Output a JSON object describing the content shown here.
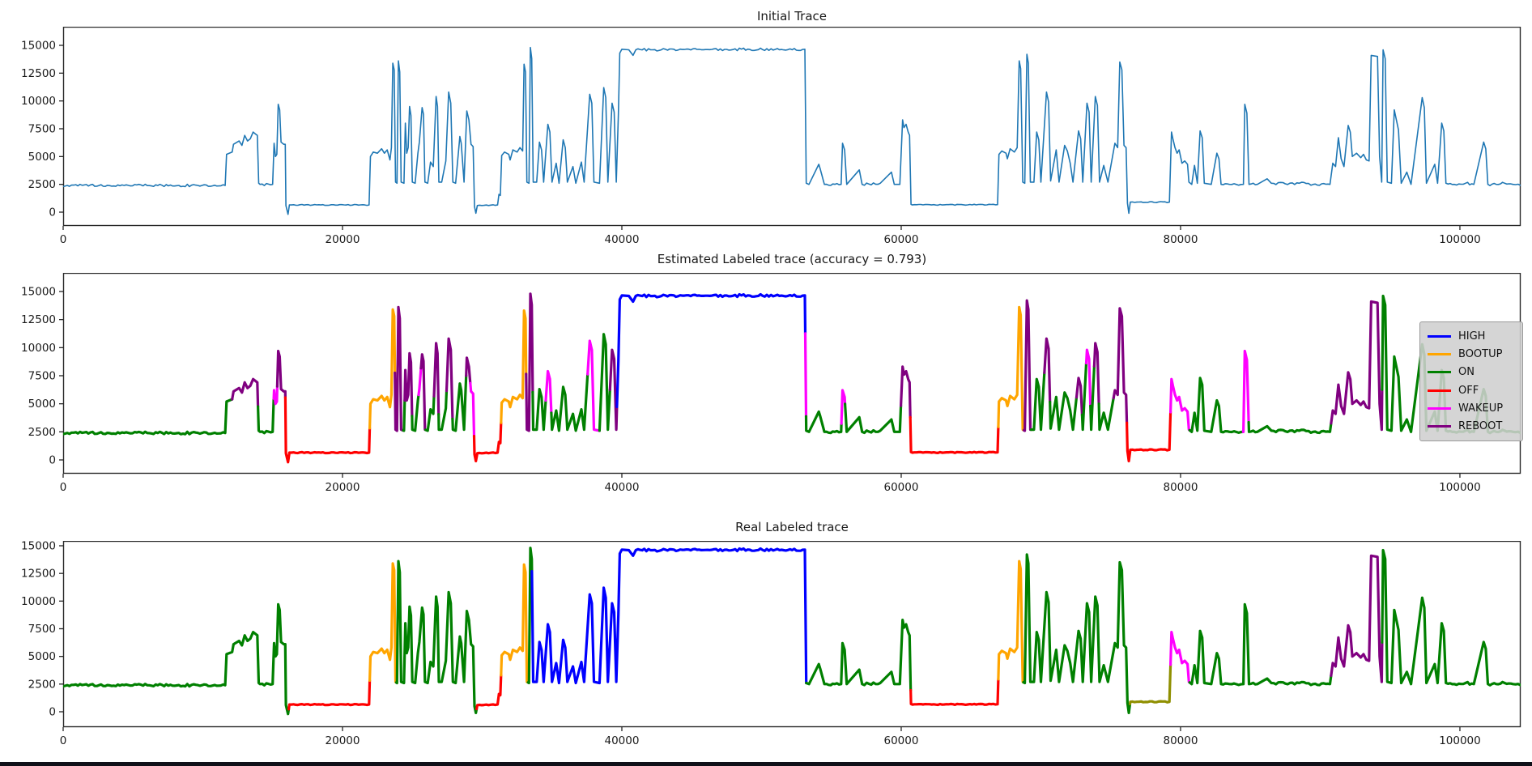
{
  "subplots": {
    "initial": {
      "title": "Initial Trace"
    },
    "estimated": {
      "title": "Estimated Labeled trace (accuracy = 0.793)"
    },
    "real": {
      "title": "Real Labeled trace"
    }
  },
  "chart_data": {
    "type": "line",
    "xlim": [
      0,
      104350
    ],
    "ylim": [
      -1250,
      16700
    ],
    "x_ticks": [
      0,
      20000,
      40000,
      60000,
      80000,
      100000
    ],
    "y_ticks": [
      0,
      2500,
      5000,
      7500,
      10000,
      12500,
      15000
    ],
    "grid": false,
    "legend_position": "center-right",
    "colors": {
      "TRACE": "#1f77b4",
      "HIGH": "#0000ff",
      "BOOTUP": "#ffa500",
      "ON": "#008000",
      "OFF": "#ff0000",
      "WAKEUP": "#ff00ff",
      "REBOOT": "#800080",
      "OLIVE": "#8f8f00"
    },
    "legend_entries": [
      {
        "label": "HIGH",
        "color": "HIGH"
      },
      {
        "label": "BOOTUP",
        "color": "BOOTUP"
      },
      {
        "label": "ON",
        "color": "ON"
      },
      {
        "label": "OFF",
        "color": "OFF"
      },
      {
        "label": "WAKEUP",
        "color": "WAKEUP"
      },
      {
        "label": "REBOOT",
        "color": "REBOOT"
      }
    ],
    "trace_points": [
      [
        0,
        2300
      ],
      [
        300,
        2400
      ],
      [
        11600,
        2400
      ],
      [
        11700,
        5200
      ],
      [
        12100,
        5400
      ],
      [
        12200,
        6100
      ],
      [
        12600,
        6400
      ],
      [
        12800,
        6000
      ],
      [
        13000,
        6900
      ],
      [
        13200,
        6400
      ],
      [
        13400,
        6600
      ],
      [
        13600,
        7200
      ],
      [
        13800,
        7000
      ],
      [
        13900,
        6900
      ],
      [
        14000,
        2600
      ],
      [
        14100,
        2500
      ],
      [
        15000,
        2500
      ],
      [
        15100,
        6200
      ],
      [
        15200,
        5000
      ],
      [
        15300,
        5200
      ],
      [
        15400,
        9700
      ],
      [
        15500,
        9200
      ],
      [
        15600,
        6300
      ],
      [
        15800,
        6100
      ],
      [
        15900,
        6100
      ],
      [
        15950,
        600
      ],
      [
        16100,
        -200
      ],
      [
        16200,
        650
      ],
      [
        21900,
        650
      ],
      [
        22000,
        5000
      ],
      [
        22200,
        5400
      ],
      [
        22500,
        5300
      ],
      [
        22800,
        5700
      ],
      [
        23000,
        5300
      ],
      [
        23200,
        5600
      ],
      [
        23400,
        4700
      ],
      [
        23500,
        5800
      ],
      [
        23600,
        13400
      ],
      [
        23700,
        12800
      ],
      [
        23800,
        2700
      ],
      [
        23900,
        2600
      ],
      [
        24000,
        13600
      ],
      [
        24100,
        12600
      ],
      [
        24200,
        2700
      ],
      [
        24400,
        2600
      ],
      [
        24500,
        8000
      ],
      [
        24600,
        5300
      ],
      [
        24700,
        5800
      ],
      [
        24800,
        9500
      ],
      [
        24900,
        8700
      ],
      [
        25000,
        2700
      ],
      [
        25200,
        2600
      ],
      [
        25400,
        5300
      ],
      [
        25500,
        6300
      ],
      [
        25700,
        9400
      ],
      [
        25800,
        8800
      ],
      [
        25900,
        2700
      ],
      [
        26100,
        2600
      ],
      [
        26300,
        4500
      ],
      [
        26500,
        4100
      ],
      [
        26700,
        10400
      ],
      [
        26800,
        9500
      ],
      [
        26900,
        2700
      ],
      [
        27100,
        2700
      ],
      [
        27400,
        4600
      ],
      [
        27600,
        10800
      ],
      [
        27750,
        9800
      ],
      [
        27900,
        2700
      ],
      [
        28100,
        2600
      ],
      [
        28400,
        6800
      ],
      [
        28500,
        6200
      ],
      [
        28700,
        2700
      ],
      [
        28900,
        9100
      ],
      [
        29050,
        8300
      ],
      [
        29200,
        6100
      ],
      [
        29350,
        5900
      ],
      [
        29450,
        500
      ],
      [
        29550,
        -100
      ],
      [
        29650,
        600
      ],
      [
        31100,
        650
      ],
      [
        31200,
        1600
      ],
      [
        31300,
        1500
      ],
      [
        31400,
        5100
      ],
      [
        31600,
        5400
      ],
      [
        31900,
        5200
      ],
      [
        32000,
        4700
      ],
      [
        32200,
        5600
      ],
      [
        32500,
        5400
      ],
      [
        32700,
        5800
      ],
      [
        32900,
        5500
      ],
      [
        33000,
        13300
      ],
      [
        33100,
        12600
      ],
      [
        33200,
        2700
      ],
      [
        33350,
        2600
      ],
      [
        33450,
        14800
      ],
      [
        33550,
        13800
      ],
      [
        33650,
        2700
      ],
      [
        33900,
        2700
      ],
      [
        34100,
        6300
      ],
      [
        34250,
        5600
      ],
      [
        34400,
        2700
      ],
      [
        34700,
        7900
      ],
      [
        34850,
        7200
      ],
      [
        35000,
        2700
      ],
      [
        35300,
        4400
      ],
      [
        35500,
        2600
      ],
      [
        35800,
        6500
      ],
      [
        35950,
        5800
      ],
      [
        36100,
        2700
      ],
      [
        36500,
        4100
      ],
      [
        36700,
        2600
      ],
      [
        37100,
        4500
      ],
      [
        37300,
        2700
      ],
      [
        37700,
        10600
      ],
      [
        37850,
        9800
      ],
      [
        38000,
        2700
      ],
      [
        38400,
        2600
      ],
      [
        38700,
        11200
      ],
      [
        38850,
        10300
      ],
      [
        39000,
        2700
      ],
      [
        39300,
        9800
      ],
      [
        39450,
        9000
      ],
      [
        39600,
        2700
      ],
      [
        39750,
        8800
      ],
      [
        39850,
        14300
      ],
      [
        40000,
        14650
      ],
      [
        40500,
        14600
      ],
      [
        40800,
        14100
      ],
      [
        41000,
        14600
      ],
      [
        53100,
        14650
      ],
      [
        53150,
        9000
      ],
      [
        53200,
        2600
      ],
      [
        53400,
        2500
      ],
      [
        54100,
        4300
      ],
      [
        54200,
        3900
      ],
      [
        54500,
        2500
      ],
      [
        55700,
        2500
      ],
      [
        55800,
        6200
      ],
      [
        55950,
        5600
      ],
      [
        56100,
        2500
      ],
      [
        57000,
        3800
      ],
      [
        57200,
        2500
      ],
      [
        58500,
        2600
      ],
      [
        59300,
        3600
      ],
      [
        59500,
        2500
      ],
      [
        59900,
        2500
      ],
      [
        60100,
        8300
      ],
      [
        60200,
        7600
      ],
      [
        60350,
        7900
      ],
      [
        60500,
        7200
      ],
      [
        60600,
        6900
      ],
      [
        60700,
        700
      ],
      [
        60800,
        650
      ],
      [
        66900,
        680
      ],
      [
        67000,
        5200
      ],
      [
        67200,
        5500
      ],
      [
        67500,
        5300
      ],
      [
        67600,
        4800
      ],
      [
        67800,
        5700
      ],
      [
        68100,
        5400
      ],
      [
        68300,
        5800
      ],
      [
        68450,
        13600
      ],
      [
        68550,
        12900
      ],
      [
        68700,
        2700
      ],
      [
        68850,
        2600
      ],
      [
        69000,
        14200
      ],
      [
        69100,
        13400
      ],
      [
        69250,
        2700
      ],
      [
        69500,
        2700
      ],
      [
        69700,
        7200
      ],
      [
        69850,
        6500
      ],
      [
        70000,
        2700
      ],
      [
        70400,
        10800
      ],
      [
        70550,
        9900
      ],
      [
        70700,
        2800
      ],
      [
        71100,
        5600
      ],
      [
        71300,
        2700
      ],
      [
        71700,
        6000
      ],
      [
        71900,
        5500
      ],
      [
        72100,
        4400
      ],
      [
        72300,
        2700
      ],
      [
        72700,
        7300
      ],
      [
        72850,
        6600
      ],
      [
        73000,
        2700
      ],
      [
        73300,
        9800
      ],
      [
        73450,
        9000
      ],
      [
        73600,
        2700
      ],
      [
        73900,
        10400
      ],
      [
        74050,
        9600
      ],
      [
        74200,
        2700
      ],
      [
        74500,
        4200
      ],
      [
        74800,
        2700
      ],
      [
        75300,
        6200
      ],
      [
        75500,
        5800
      ],
      [
        75650,
        13500
      ],
      [
        75800,
        12800
      ],
      [
        75950,
        6000
      ],
      [
        76100,
        5800
      ],
      [
        76200,
        800
      ],
      [
        76300,
        -100
      ],
      [
        76400,
        900
      ],
      [
        79200,
        900
      ],
      [
        79350,
        7200
      ],
      [
        79450,
        6600
      ],
      [
        79600,
        5800
      ],
      [
        79750,
        5300
      ],
      [
        79900,
        5600
      ],
      [
        80100,
        4400
      ],
      [
        80300,
        4600
      ],
      [
        80500,
        4300
      ],
      [
        80600,
        2700
      ],
      [
        80800,
        2500
      ],
      [
        81000,
        4200
      ],
      [
        81200,
        2600
      ],
      [
        81400,
        7300
      ],
      [
        81550,
        6700
      ],
      [
        81700,
        2600
      ],
      [
        82200,
        2500
      ],
      [
        82600,
        5300
      ],
      [
        82750,
        4800
      ],
      [
        82900,
        2500
      ],
      [
        83500,
        2500
      ],
      [
        84500,
        2500
      ],
      [
        84600,
        9700
      ],
      [
        84750,
        8900
      ],
      [
        84900,
        2500
      ],
      [
        85500,
        2500
      ],
      [
        86200,
        3000
      ],
      [
        86500,
        2600
      ],
      [
        87500,
        2550
      ],
      [
        88500,
        2600
      ],
      [
        89500,
        2500
      ],
      [
        90700,
        2500
      ],
      [
        90900,
        4400
      ],
      [
        91100,
        4100
      ],
      [
        91300,
        6700
      ],
      [
        91500,
        4800
      ],
      [
        91700,
        4100
      ],
      [
        92000,
        7800
      ],
      [
        92150,
        7200
      ],
      [
        92300,
        5000
      ],
      [
        92600,
        5300
      ],
      [
        92900,
        4900
      ],
      [
        93100,
        5200
      ],
      [
        93300,
        4700
      ],
      [
        93500,
        4600
      ],
      [
        93650,
        14100
      ],
      [
        94100,
        14000
      ],
      [
        94250,
        5000
      ],
      [
        94400,
        2700
      ],
      [
        94500,
        14600
      ],
      [
        94650,
        13800
      ],
      [
        94800,
        2700
      ],
      [
        95100,
        2600
      ],
      [
        95300,
        9200
      ],
      [
        95450,
        8300
      ],
      [
        95600,
        7400
      ],
      [
        95800,
        2600
      ],
      [
        96200,
        3600
      ],
      [
        96500,
        2500
      ],
      [
        97300,
        10300
      ],
      [
        97450,
        9400
      ],
      [
        97600,
        2600
      ],
      [
        98200,
        4300
      ],
      [
        98400,
        2600
      ],
      [
        98700,
        8000
      ],
      [
        98850,
        7300
      ],
      [
        99000,
        2600
      ],
      [
        99600,
        2500
      ],
      [
        100400,
        2600
      ],
      [
        101000,
        2500
      ],
      [
        101700,
        6300
      ],
      [
        101850,
        5700
      ],
      [
        102000,
        2500
      ],
      [
        102600,
        2500
      ],
      [
        103200,
        2600
      ],
      [
        103800,
        2500
      ],
      [
        104350,
        2400
      ]
    ],
    "estimated_segments": [
      [
        "ON",
        0,
        12100
      ],
      [
        "REBOOT",
        12100,
        13950
      ],
      [
        "ON",
        13950,
        15080
      ],
      [
        "WAKEUP",
        15080,
        15330
      ],
      [
        "REBOOT",
        15330,
        15905
      ],
      [
        "OFF",
        15905,
        21950
      ],
      [
        "BOOTUP",
        21950,
        23750
      ],
      [
        "REBOOT",
        23750,
        24350
      ],
      [
        "ON",
        24350,
        24450
      ],
      [
        "REBOOT",
        24450,
        24980
      ],
      [
        "ON",
        24980,
        25450
      ],
      [
        "WAKEUP",
        25450,
        25620
      ],
      [
        "REBOOT",
        25620,
        25950
      ],
      [
        "ON",
        25950,
        26550
      ],
      [
        "REBOOT",
        26550,
        26880
      ],
      [
        "ON",
        26880,
        27450
      ],
      [
        "REBOOT",
        27450,
        27880
      ],
      [
        "ON",
        27880,
        28850
      ],
      [
        "REBOOT",
        28850,
        29150
      ],
      [
        "WAKEUP",
        29150,
        29420
      ],
      [
        "OFF",
        29420,
        31350
      ],
      [
        "BOOTUP",
        31350,
        33150
      ],
      [
        "REBOOT",
        33150,
        33620
      ],
      [
        "ON",
        33620,
        34550
      ],
      [
        "WAKEUP",
        34550,
        34950
      ],
      [
        "ON",
        34950,
        37550
      ],
      [
        "WAKEUP",
        37550,
        38400
      ],
      [
        "ON",
        38400,
        39150
      ],
      [
        "REBOOT",
        39150,
        39650
      ],
      [
        "HIGH",
        39650,
        53130
      ],
      [
        "WAKEUP",
        53130,
        53190
      ],
      [
        "ON",
        53190,
        55720
      ],
      [
        "WAKEUP",
        55720,
        55980
      ],
      [
        "ON",
        55980,
        59980
      ],
      [
        "REBOOT",
        59980,
        60650
      ],
      [
        "OFF",
        60650,
        66950
      ],
      [
        "BOOTUP",
        66950,
        68780
      ],
      [
        "REBOOT",
        68780,
        69300
      ],
      [
        "ON",
        69300,
        70250
      ],
      [
        "REBOOT",
        70250,
        70650
      ],
      [
        "ON",
        70650,
        72550
      ],
      [
        "REBOOT",
        72550,
        72950
      ],
      [
        "ON",
        72950,
        73250
      ],
      [
        "WAKEUP",
        73250,
        73550
      ],
      [
        "ON",
        73550,
        73820
      ],
      [
        "REBOOT",
        73820,
        74150
      ],
      [
        "ON",
        74150,
        75200
      ],
      [
        "REBOOT",
        75200,
        76150
      ],
      [
        "OFF",
        76150,
        79280
      ],
      [
        "WAKEUP",
        79280,
        80650
      ],
      [
        "ON",
        80650,
        84480
      ],
      [
        "WAKEUP",
        84480,
        84880
      ],
      [
        "ON",
        84880,
        90780
      ],
      [
        "REBOOT",
        90780,
        94430
      ],
      [
        "ON",
        94430,
        104350
      ]
    ],
    "real_segments": [
      [
        "ON",
        0,
        16150
      ],
      [
        "OFF",
        16150,
        21950
      ],
      [
        "BOOTUP",
        21950,
        23850
      ],
      [
        "ON",
        23850,
        29600
      ],
      [
        "OFF",
        29600,
        31350
      ],
      [
        "BOOTUP",
        31350,
        33280
      ],
      [
        "ON",
        33280,
        33560
      ],
      [
        "HIGH",
        33560,
        53200
      ],
      [
        "ON",
        53200,
        60680
      ],
      [
        "OFF",
        60680,
        66950
      ],
      [
        "BOOTUP",
        66950,
        68750
      ],
      [
        "ON",
        68750,
        76380
      ],
      [
        "OLIVE",
        76380,
        79280
      ],
      [
        "WAKEUP",
        79280,
        80650
      ],
      [
        "ON",
        80650,
        90780
      ],
      [
        "REBOOT",
        90780,
        94430
      ],
      [
        "ON",
        94430,
        104350
      ]
    ]
  }
}
